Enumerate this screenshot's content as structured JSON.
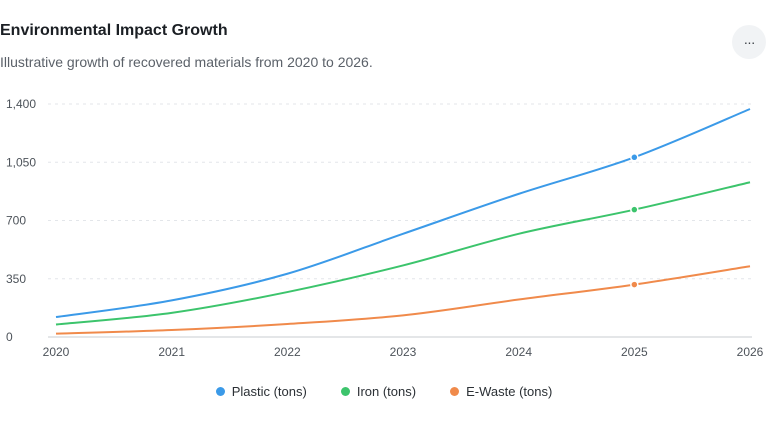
{
  "header": {
    "title": "Environmental Impact Growth",
    "subtitle": "Illustrative growth of recovered materials from 2020 to 2026.",
    "menu_label": "···"
  },
  "chart_data": {
    "type": "line",
    "title": "Environmental Impact Growth",
    "subtitle": "Illustrative growth of recovered materials from 2020 to 2026.",
    "x": [
      2020,
      2021,
      2022,
      2023,
      2024,
      2025,
      2026
    ],
    "x_tick_labels": [
      "2020",
      "2021",
      "2022",
      "2023",
      "2024",
      "2025",
      "2026"
    ],
    "y_ticks": [
      0,
      350,
      700,
      1050,
      1400
    ],
    "y_tick_labels": [
      "0",
      "350",
      "700",
      "1,050",
      "1,400"
    ],
    "ylim": [
      0,
      1400
    ],
    "grid": true,
    "legend_position": "bottom",
    "highlight_x": 2025,
    "series": [
      {
        "name": "Plastic (tons)",
        "color": "#3b9ae8",
        "values": [
          120,
          220,
          380,
          620,
          860,
          1080,
          1370
        ]
      },
      {
        "name": "Iron (tons)",
        "color": "#3cc46c",
        "values": [
          75,
          145,
          270,
          430,
          620,
          765,
          930
        ]
      },
      {
        "name": "E-Waste (tons)",
        "color": "#f08a4b",
        "values": [
          20,
          42,
          78,
          130,
          225,
          315,
          425
        ]
      }
    ]
  }
}
